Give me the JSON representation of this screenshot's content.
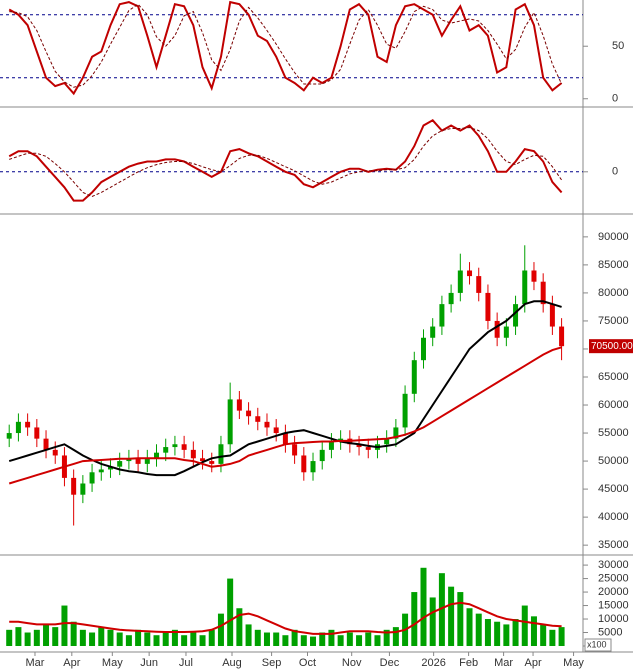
{
  "chart_data": [
    {
      "type": "line",
      "x": [
        0,
        1,
        2,
        3,
        4,
        5,
        6,
        7,
        8,
        9,
        10,
        11,
        12,
        13,
        14,
        15,
        16,
        17,
        18,
        19,
        20,
        21,
        22,
        23,
        24,
        25,
        26,
        27,
        28,
        29,
        30,
        31,
        32,
        33,
        34,
        35,
        36,
        37,
        38,
        39,
        40,
        41,
        42,
        43,
        44,
        45,
        46,
        47,
        48,
        49,
        50,
        51,
        52,
        53,
        54,
        55,
        56,
        57,
        58,
        59,
        60
      ],
      "xlim": [
        -1,
        62
      ],
      "ylim": [
        -5,
        94
      ],
      "yticks": [
        0,
        50
      ],
      "hlines": [
        20,
        80
      ],
      "series": [
        {
          "color": "#c00000",
          "line_style": "solid",
          "values": [
            85,
            80,
            70,
            45,
            20,
            12,
            15,
            5,
            20,
            40,
            45,
            70,
            90,
            92,
            88,
            60,
            30,
            60,
            90,
            88,
            70,
            30,
            10,
            40,
            92,
            90,
            80,
            60,
            55,
            40,
            20,
            15,
            8,
            20,
            15,
            20,
            50,
            85,
            90,
            80,
            40,
            35,
            70,
            88,
            90,
            85,
            80,
            60,
            75,
            88,
            65,
            70,
            60,
            25,
            30,
            85,
            90,
            70,
            20,
            8,
            15
          ]
        },
        {
          "color": "#7a0000",
          "line_style": "dashed",
          "values": [
            83,
            82,
            78,
            65,
            45,
            26,
            16,
            11,
            13,
            22,
            35,
            52,
            68,
            84,
            90,
            80,
            59,
            50,
            60,
            79,
            83,
            63,
            37,
            27,
            47,
            74,
            87,
            77,
            65,
            52,
            38,
            25,
            14,
            14,
            14,
            18,
            28,
            52,
            75,
            85,
            70,
            52,
            48,
            64,
            83,
            88,
            85,
            75,
            72,
            74,
            76,
            74,
            65,
            52,
            38,
            47,
            68,
            82,
            60,
            33,
            14
          ]
        }
      ]
    },
    {
      "type": "line",
      "x": [
        0,
        1,
        2,
        3,
        4,
        5,
        6,
        7,
        8,
        9,
        10,
        11,
        12,
        13,
        14,
        15,
        16,
        17,
        18,
        19,
        20,
        21,
        22,
        23,
        24,
        25,
        26,
        27,
        28,
        29,
        30,
        31,
        32,
        33,
        34,
        35,
        36,
        37,
        38,
        39,
        40,
        41,
        42,
        43,
        44,
        45,
        46,
        47,
        48,
        49,
        50,
        51,
        52,
        53,
        54,
        55,
        56,
        57,
        58,
        59,
        60
      ],
      "xlim": [
        -1,
        62
      ],
      "ylim": [
        -4,
        6
      ],
      "yticks": [
        0
      ],
      "hlines": [
        0
      ],
      "series": [
        {
          "color": "#c00000",
          "line_style": "solid",
          "values": [
            1.5,
            2,
            2,
            1.5,
            0.5,
            -0.5,
            -1.5,
            -2.8,
            -2.8,
            -2,
            -1,
            -0.5,
            0,
            0.5,
            0.8,
            1,
            1,
            1.2,
            1.2,
            1,
            0.5,
            0,
            -0.5,
            0,
            2,
            2.2,
            1.8,
            1.5,
            1,
            0.5,
            0,
            -0.3,
            -1.2,
            -1.5,
            -1,
            -0.5,
            0,
            0.3,
            0.3,
            0,
            0.2,
            0.3,
            0.2,
            1,
            2.5,
            4.5,
            5,
            4,
            4.5,
            4,
            4.5,
            3.5,
            2,
            0,
            0,
            1,
            2.2,
            2,
            1,
            -1,
            -2
          ]
        },
        {
          "color": "#7a0000",
          "line_style": "dashed",
          "values": [
            1.2,
            1.5,
            1.8,
            1.8,
            1.5,
            0.8,
            0,
            -1,
            -2,
            -2.4,
            -2,
            -1.5,
            -1,
            -0.5,
            0,
            0.4,
            0.7,
            0.9,
            1,
            1,
            0.8,
            0.5,
            0.2,
            0,
            0.6,
            1.3,
            1.6,
            1.6,
            1.3,
            0.9,
            0.5,
            0.1,
            -0.4,
            -0.9,
            -1.2,
            -1,
            -0.6,
            -0.2,
            0,
            0.1,
            0.1,
            0.2,
            0.2,
            0.4,
            1.2,
            2.5,
            3.5,
            4,
            4.2,
            4.2,
            4.3,
            4,
            3.2,
            2,
            1,
            0.7,
            1.2,
            1.6,
            1.5,
            0.5,
            -0.8
          ]
        }
      ]
    },
    {
      "type": "candlestick",
      "x": [
        0,
        1,
        2,
        3,
        4,
        5,
        6,
        7,
        8,
        9,
        10,
        11,
        12,
        13,
        14,
        15,
        16,
        17,
        18,
        19,
        20,
        21,
        22,
        23,
        24,
        25,
        26,
        27,
        28,
        29,
        30,
        31,
        32,
        33,
        34,
        35,
        36,
        37,
        38,
        39,
        40,
        41,
        42,
        43,
        44,
        45,
        46,
        47,
        48,
        49,
        50,
        51,
        52,
        53,
        54,
        55,
        56,
        57,
        58,
        59,
        60
      ],
      "xlim": [
        -1,
        62
      ],
      "ylim": [
        33600,
        93900
      ],
      "yticks": [
        35000,
        40000,
        45000,
        50000,
        55000,
        60000,
        65000,
        70000,
        75000,
        80000,
        85000,
        90000
      ],
      "up_color": "#00a000",
      "down_color": "#e00000",
      "open": [
        54000,
        55000,
        57000,
        56000,
        54000,
        52000,
        51000,
        47000,
        44000,
        46000,
        48000,
        48500,
        49000,
        50000,
        50500,
        49500,
        50500,
        51500,
        52500,
        53000,
        52000,
        50500,
        50000,
        49500,
        53000,
        61000,
        59000,
        58000,
        57000,
        56000,
        55000,
        53000,
        51000,
        48000,
        50000,
        52000,
        53500,
        54000,
        53000,
        52500,
        52000,
        53000,
        54000,
        56000,
        62000,
        68000,
        72000,
        74000,
        78000,
        80000,
        84000,
        83000,
        80000,
        75000,
        72000,
        74000,
        78000,
        84000,
        82000,
        78000,
        74000
      ],
      "high": [
        56500,
        58500,
        58500,
        57500,
        55500,
        53500,
        52500,
        48500,
        47500,
        49500,
        50000,
        50500,
        51500,
        52000,
        52000,
        52000,
        53000,
        54000,
        54500,
        54500,
        53500,
        52000,
        51500,
        54500,
        64000,
        62500,
        60500,
        59500,
        58500,
        57500,
        56500,
        54500,
        52500,
        51500,
        53500,
        55000,
        55500,
        55500,
        54500,
        54000,
        54500,
        55500,
        57500,
        63500,
        69500,
        73500,
        75500,
        79500,
        81500,
        87000,
        85500,
        84500,
        81500,
        76500,
        75500,
        79500,
        88500,
        85500,
        83500,
        79500,
        75500
      ],
      "low": [
        52500,
        53500,
        54500,
        52500,
        50500,
        49500,
        45500,
        38500,
        42500,
        44500,
        46500,
        47000,
        47500,
        48500,
        48000,
        48000,
        49000,
        50000,
        51000,
        50500,
        49000,
        48500,
        48000,
        48000,
        51500,
        57500,
        56500,
        55500,
        54500,
        53500,
        51500,
        49500,
        46500,
        46500,
        48500,
        50500,
        52000,
        51500,
        51000,
        50500,
        50500,
        51500,
        52500,
        54500,
        60500,
        66500,
        70500,
        72500,
        76500,
        78500,
        81500,
        78500,
        73500,
        70500,
        70500,
        72500,
        76500,
        80500,
        76500,
        72500,
        68000
      ],
      "close": [
        55000,
        57000,
        56000,
        54000,
        52000,
        51000,
        47000,
        44000,
        46000,
        48000,
        48500,
        49000,
        50000,
        50500,
        49500,
        50500,
        51500,
        52500,
        53000,
        52000,
        50500,
        50000,
        49500,
        53000,
        61000,
        59000,
        58000,
        57000,
        56000,
        55000,
        53000,
        51000,
        48000,
        50000,
        52000,
        53500,
        54000,
        53000,
        52500,
        52000,
        53000,
        54000,
        56000,
        62000,
        68000,
        72000,
        74000,
        78000,
        80000,
        84000,
        83000,
        80000,
        75000,
        72000,
        74000,
        78000,
        84000,
        82000,
        78000,
        74000,
        70500
      ],
      "price_tag": "70500.00",
      "series": [
        {
          "color": "#000000",
          "values": [
            50000,
            50500,
            51000,
            51500,
            52000,
            52500,
            53000,
            52000,
            51000,
            50200,
            49500,
            49000,
            48500,
            48200,
            48000,
            47700,
            47500,
            47500,
            47500,
            48200,
            49000,
            49800,
            50500,
            50800,
            51000,
            52000,
            53000,
            53500,
            54000,
            54500,
            55000,
            55300,
            55500,
            55000,
            54500,
            54000,
            53500,
            53200,
            53000,
            52700,
            52500,
            52700,
            53000,
            54000,
            55000,
            57500,
            60000,
            62500,
            65000,
            67500,
            70000,
            71500,
            73000,
            74000,
            75000,
            76500,
            78000,
            78500,
            78500,
            78000,
            77500
          ]
        },
        {
          "color": "#d00000",
          "values": [
            46000,
            46500,
            47000,
            47500,
            48000,
            48500,
            49000,
            49500,
            50000,
            50100,
            50200,
            50300,
            50400,
            50400,
            50500,
            50500,
            50500,
            50500,
            50500,
            50200,
            50000,
            49500,
            49000,
            49200,
            49500,
            50000,
            51000,
            51500,
            52000,
            52500,
            53000,
            53200,
            53300,
            53400,
            53500,
            53500,
            53600,
            53600,
            53700,
            53800,
            53900,
            54000,
            54300,
            54700,
            55300,
            56000,
            57000,
            58000,
            59000,
            60000,
            61000,
            62000,
            63000,
            64000,
            65000,
            66000,
            67000,
            68000,
            69000,
            69800,
            70300
          ]
        }
      ]
    },
    {
      "type": "bar",
      "x": [
        0,
        1,
        2,
        3,
        4,
        5,
        6,
        7,
        8,
        9,
        10,
        11,
        12,
        13,
        14,
        15,
        16,
        17,
        18,
        19,
        20,
        21,
        22,
        23,
        24,
        25,
        26,
        27,
        28,
        29,
        30,
        31,
        32,
        33,
        34,
        35,
        36,
        37,
        38,
        39,
        40,
        41,
        42,
        43,
        44,
        45,
        46,
        47,
        48,
        49,
        50,
        51,
        52,
        53,
        54,
        55,
        56,
        57,
        58,
        59,
        60
      ],
      "xlim": [
        -1,
        62
      ],
      "ylim": [
        0,
        33000
      ],
      "yticks": [
        0,
        5000,
        10000,
        15000,
        20000,
        25000,
        30000
      ],
      "unit_label": "x100",
      "color": "#00a000",
      "values": [
        6000,
        7000,
        5000,
        6000,
        8000,
        7000,
        15000,
        9000,
        6000,
        5000,
        7000,
        6000,
        5000,
        4000,
        6000,
        5000,
        4000,
        5000,
        6000,
        4000,
        5000,
        4000,
        6000,
        12000,
        25000,
        14000,
        8000,
        6000,
        5000,
        5000,
        4000,
        6000,
        4000,
        3500,
        5000,
        6000,
        4000,
        5000,
        4000,
        5000,
        4000,
        6000,
        7000,
        12000,
        20000,
        29000,
        18000,
        27000,
        22000,
        20000,
        14000,
        12000,
        10000,
        9000,
        8000,
        10000,
        15000,
        11000,
        8000,
        6000,
        7000
      ],
      "series": [
        {
          "color": "#d00000",
          "values": [
            9000,
            9000,
            8500,
            8000,
            8000,
            8000,
            8500,
            8500,
            8000,
            7500,
            7000,
            6500,
            6000,
            5800,
            5600,
            5500,
            5300,
            5200,
            5200,
            5200,
            5300,
            5500,
            6000,
            7500,
            9500,
            11500,
            12000,
            11000,
            9500,
            8000,
            6500,
            5500,
            5000,
            4500,
            4500,
            4500,
            5000,
            5500,
            5500,
            5500,
            5200,
            5000,
            5200,
            6000,
            8000,
            10500,
            12500,
            14000,
            15500,
            16000,
            15500,
            14000,
            12500,
            11000,
            10000,
            9500,
            9000,
            8500,
            8000,
            7500,
            7300
          ]
        }
      ],
      "xticks": [
        {
          "value": 2.8,
          "label": "Mar"
        },
        {
          "value": 6.8,
          "label": "Apr"
        },
        {
          "value": 11.2,
          "label": "May"
        },
        {
          "value": 15.2,
          "label": "Jun"
        },
        {
          "value": 19.2,
          "label": "Jul"
        },
        {
          "value": 24.2,
          "label": "Aug"
        },
        {
          "value": 28.5,
          "label": "Sep"
        },
        {
          "value": 32.4,
          "label": "Oct"
        },
        {
          "value": 37.2,
          "label": "Nov"
        },
        {
          "value": 41.3,
          "label": "Dec"
        },
        {
          "value": 46.1,
          "label": "2026"
        },
        {
          "value": 49.9,
          "label": "Feb"
        },
        {
          "value": 53.7,
          "label": "Mar"
        },
        {
          "value": 56.9,
          "label": "Apr"
        },
        {
          "value": 61.3,
          "label": "May"
        }
      ]
    }
  ]
}
